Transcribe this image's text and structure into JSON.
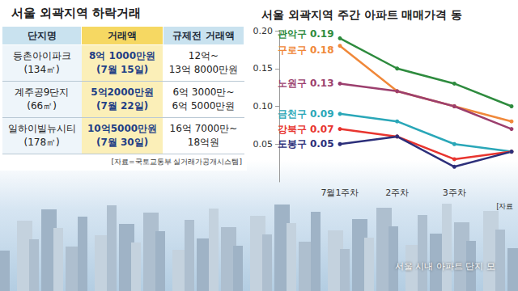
{
  "table": {
    "title": "서울 외곽지역 하락거래",
    "header": [
      "단지명",
      "거래액",
      "규제전 거래액"
    ],
    "rows": [
      [
        [
          "등촌아이파크",
          "(134㎡)"
        ],
        [
          "8억 1000만원",
          "(7월 15일)"
        ],
        [
          "12억~",
          "13억 8000만원"
        ]
      ],
      [
        [
          "계주공9단지",
          "(66㎡)"
        ],
        [
          "5억2000만원",
          "(7월 22일)"
        ],
        [
          "6억 3000만~",
          "6억 5000만원"
        ]
      ],
      [
        [
          "일하이빌뉴시티",
          "(178㎡)"
        ],
        [
          "10억5000만원",
          "(7월 30일)"
        ],
        [
          "16억 7000만~",
          "18억원"
        ]
      ]
    ],
    "source": "[자료=국토교통부 실거래가공개시스템]"
  },
  "chart_data": {
    "type": "line",
    "title": "서울 외곽지역 주간 아파트 매매가격 동",
    "categories": [
      "7월1주차",
      "2주차",
      "3주차",
      null
    ],
    "series": [
      {
        "name": "관악구",
        "color": "#2e8b3e",
        "values": [
          0.19,
          0.15,
          0.13,
          0.1
        ],
        "value_labels": [
          "0.19",
          null,
          null,
          null
        ]
      },
      {
        "name": "구로구",
        "color": "#f0883a",
        "values": [
          0.18,
          0.12,
          0.1,
          0.08
        ],
        "value_labels": [
          "0.18",
          null,
          null,
          null
        ]
      },
      {
        "name": "노원구",
        "color": "#9c3f6e",
        "values": [
          0.13,
          0.12,
          0.1,
          0.07
        ],
        "value_labels": [
          "0.13",
          null,
          null,
          null
        ]
      },
      {
        "name": "금천구",
        "color": "#2aa7b8",
        "values": [
          0.09,
          0.08,
          0.05,
          0.04
        ],
        "value_labels": [
          "0.09",
          null,
          null,
          null
        ]
      },
      {
        "name": "강북구",
        "color": "#e8352f",
        "values": [
          0.07,
          0.06,
          0.03,
          0.04
        ],
        "value_labels": [
          "0.07",
          null,
          null,
          null
        ]
      },
      {
        "name": "도봉구",
        "color": "#2c2f7a",
        "values": [
          0.05,
          0.06,
          0.02,
          0.04
        ],
        "value_labels": [
          "0.05",
          null,
          null,
          null
        ]
      }
    ],
    "ylim": [
      0,
      0.2
    ],
    "yticks": [
      0.05,
      {
        "value": 0.1,
        "label": "0.10"
      },
      0.15,
      {
        "value": 0.2,
        "label": "0.20"
      }
    ],
    "grid": false,
    "annotations": [
      "[자료"
    ]
  },
  "photo_caption": "서울 시내 아파트 단지 모"
}
